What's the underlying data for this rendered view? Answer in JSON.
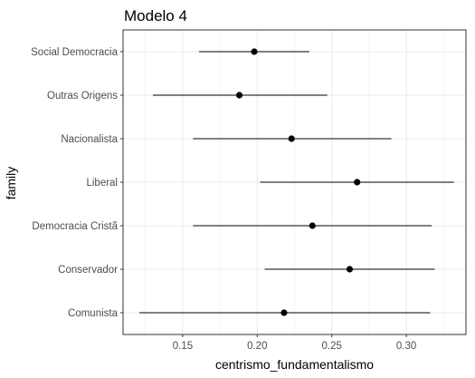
{
  "chart_data": {
    "type": "scatter",
    "title": "Modelo 4",
    "xlabel": "centrismo_fundamentalismo",
    "ylabel": "family",
    "xlim": [
      0.11,
      0.34
    ],
    "x_ticks": [
      0.15,
      0.2,
      0.25,
      0.3
    ],
    "x_tick_labels": [
      "0.15",
      "0.20",
      "0.25",
      "0.30"
    ],
    "grid": true,
    "legend": "none",
    "categories": [
      "Comunista",
      "Conservador",
      "Democracia Cristã",
      "Liberal",
      "Nacionalista",
      "Outras Origens",
      "Social Democracia"
    ],
    "points": [
      {
        "category": "Comunista",
        "estimate": 0.218,
        "low": 0.121,
        "high": 0.316
      },
      {
        "category": "Conservador",
        "estimate": 0.262,
        "low": 0.205,
        "high": 0.319
      },
      {
        "category": "Democracia Cristã",
        "estimate": 0.237,
        "low": 0.157,
        "high": 0.317
      },
      {
        "category": "Liberal",
        "estimate": 0.267,
        "low": 0.202,
        "high": 0.332
      },
      {
        "category": "Nacionalista",
        "estimate": 0.223,
        "low": 0.157,
        "high": 0.29
      },
      {
        "category": "Outras Origens",
        "estimate": 0.188,
        "low": 0.13,
        "high": 0.247
      },
      {
        "category": "Social Democracia",
        "estimate": 0.198,
        "low": 0.161,
        "high": 0.235
      }
    ],
    "colors": {
      "point": "#000000",
      "errorbar": "#000000",
      "panel_border": "#333333",
      "grid": "#ebebeb"
    }
  }
}
